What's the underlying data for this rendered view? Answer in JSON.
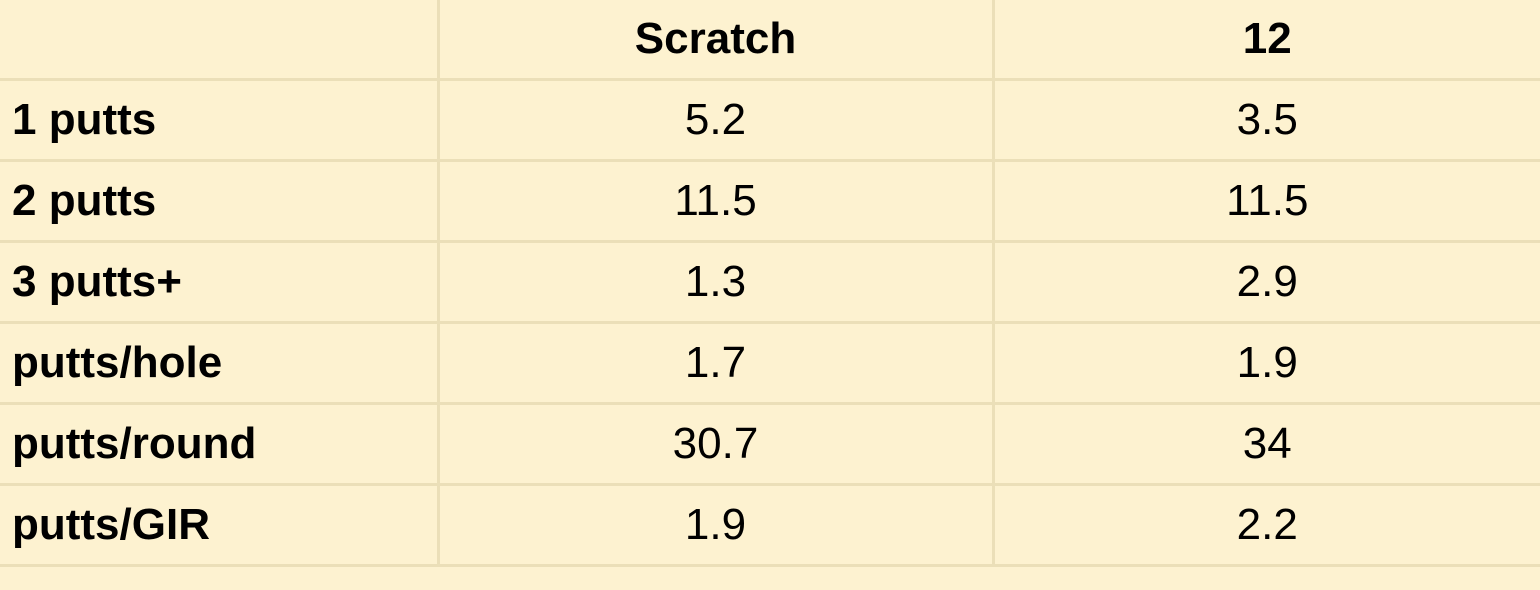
{
  "table": {
    "columns": [
      "Scratch",
      "12"
    ],
    "rows": [
      [
        "1 putts",
        5.2,
        3.5
      ],
      [
        "2 putts",
        11.5,
        11.5
      ],
      [
        "3 putts+",
        1.3,
        2.9
      ],
      [
        "putts/hole",
        1.7,
        1.9
      ],
      [
        "putts/round",
        30.7,
        34
      ],
      [
        "putts/GIR",
        1.9,
        2.2
      ]
    ]
  }
}
